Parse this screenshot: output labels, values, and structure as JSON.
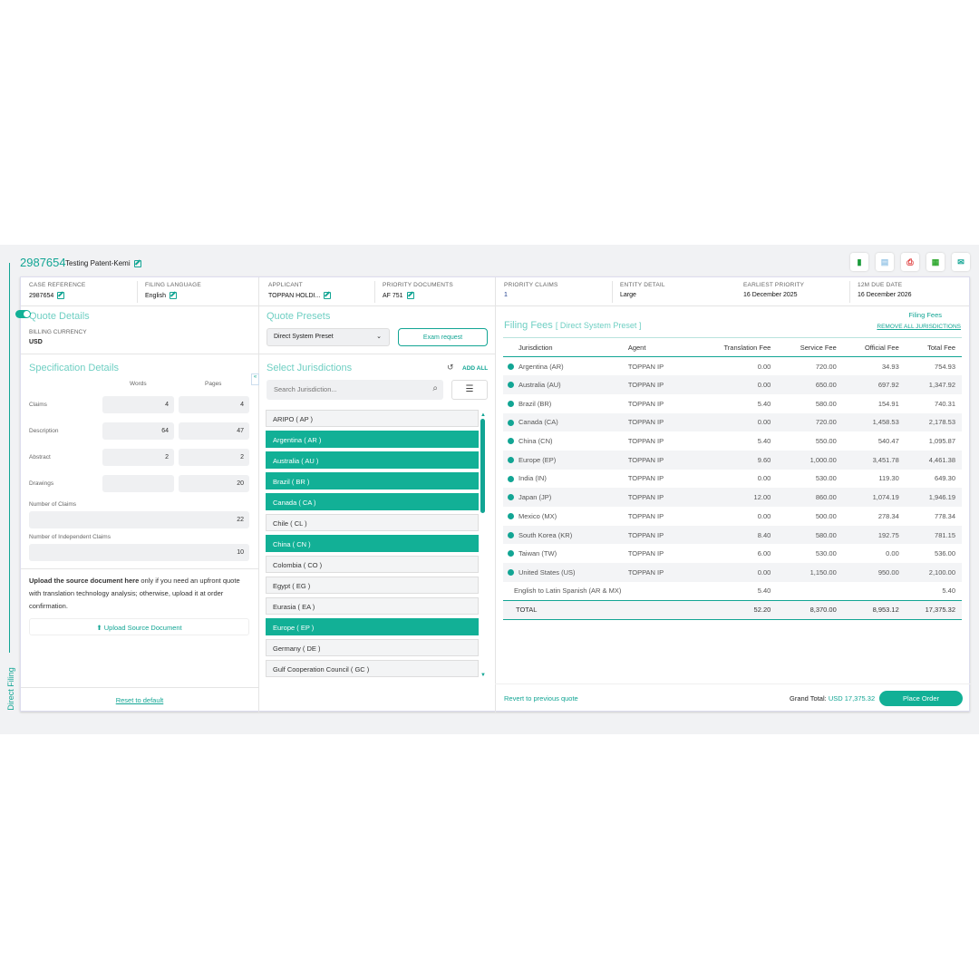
{
  "header": {
    "case_number": "2987654",
    "case_name": "Testing Patent-Kemi"
  },
  "side_tab": "Direct Filing",
  "export_icons": [
    "docx-icon",
    "doc-icon",
    "pdf-icon",
    "excel-icon",
    "email-icon"
  ],
  "info": [
    {
      "label": "CASE REFERENCE",
      "value": "2987654",
      "editable": true
    },
    {
      "label": "FILING LANGUAGE",
      "value": "English",
      "editable": true
    },
    {
      "label": "APPLICANT",
      "value": "TOPPAN HOLDI...",
      "editable": true
    },
    {
      "label": "PRIORITY DOCUMENTS",
      "value": "AF 751",
      "editable": true
    },
    {
      "label": "PRIORITY CLAIMS",
      "value": "1"
    },
    {
      "label": "ENTITY DETAIL",
      "value": "Large"
    },
    {
      "label": "EARLIEST PRIORITY",
      "value": "16 December 2025"
    },
    {
      "label": "12M DUE DATE",
      "value": "16 December 2026"
    }
  ],
  "quote": {
    "title": "Quote Details",
    "currency_label": "BILLING CURRENCY",
    "currency": "USD"
  },
  "spec": {
    "title": "Specification Details",
    "col_words": "Words",
    "col_pages": "Pages",
    "rows": [
      {
        "label": "Claims",
        "words": "4",
        "pages": "4"
      },
      {
        "label": "Description",
        "words": "64",
        "pages": "47"
      },
      {
        "label": "Abstract",
        "words": "2",
        "pages": "2"
      },
      {
        "label": "Drawings",
        "words": "",
        "pages": "20"
      }
    ],
    "num_claims_label": "Number of Claims",
    "num_claims": "22",
    "num_indep_label": "Number of Independent Claims",
    "num_indep": "10"
  },
  "upload": {
    "bold": "Upload the source document here",
    "text": " only if you need an upfront quote with translation technology analysis; otherwise, upload it at order confirmation.",
    "button": "Upload Source Document"
  },
  "reset": "Reset to default",
  "presets": {
    "title": "Quote Presets",
    "selected": "Direct System Preset",
    "exam": "Exam request"
  },
  "jurisdictions": {
    "title": "Select Jurisdictions",
    "add_all": "ADD ALL",
    "placeholder": "Search Jurisdiction...",
    "items": [
      {
        "name": "ARIPO ( AP )",
        "selected": false
      },
      {
        "name": "Argentina ( AR )",
        "selected": true
      },
      {
        "name": "Australia ( AU )",
        "selected": true
      },
      {
        "name": "Brazil ( BR )",
        "selected": true
      },
      {
        "name": "Canada ( CA )",
        "selected": true
      },
      {
        "name": "Chile ( CL )",
        "selected": false
      },
      {
        "name": "China ( CN )",
        "selected": true
      },
      {
        "name": "Colombia ( CO )",
        "selected": false
      },
      {
        "name": "Egypt ( EG )",
        "selected": false
      },
      {
        "name": "Eurasia ( EA )",
        "selected": false
      },
      {
        "name": "Europe ( EP )",
        "selected": true
      },
      {
        "name": "Germany ( DE )",
        "selected": false
      },
      {
        "name": "Gulf Cooperation Council ( GC )",
        "selected": false
      }
    ]
  },
  "fees": {
    "title": "Filing Fees",
    "preset": "[ Direct System Preset ]",
    "toggle_label": "Filing Fees",
    "toggle_on": true,
    "remove_all": "REMOVE ALL JURISDICTIONS",
    "columns": [
      "Jurisdiction",
      "Agent",
      "Translation Fee",
      "Service Fee",
      "Official Fee",
      "Total Fee"
    ],
    "rows": [
      [
        "Argentina (AR)",
        "TOPPAN IP",
        "0.00",
        "720.00",
        "34.93",
        "754.93"
      ],
      [
        "Australia (AU)",
        "TOPPAN IP",
        "0.00",
        "650.00",
        "697.92",
        "1,347.92"
      ],
      [
        "Brazil (BR)",
        "TOPPAN IP",
        "5.40",
        "580.00",
        "154.91",
        "740.31"
      ],
      [
        "Canada (CA)",
        "TOPPAN IP",
        "0.00",
        "720.00",
        "1,458.53",
        "2,178.53"
      ],
      [
        "China (CN)",
        "TOPPAN IP",
        "5.40",
        "550.00",
        "540.47",
        "1,095.87"
      ],
      [
        "Europe (EP)",
        "TOPPAN IP",
        "9.60",
        "1,000.00",
        "3,451.78",
        "4,461.38"
      ],
      [
        "India (IN)",
        "TOPPAN IP",
        "0.00",
        "530.00",
        "119.30",
        "649.30"
      ],
      [
        "Japan (JP)",
        "TOPPAN IP",
        "12.00",
        "860.00",
        "1,074.19",
        "1,946.19"
      ],
      [
        "Mexico (MX)",
        "TOPPAN IP",
        "0.00",
        "500.00",
        "278.34",
        "778.34"
      ],
      [
        "South Korea (KR)",
        "TOPPAN IP",
        "8.40",
        "580.00",
        "192.75",
        "781.15"
      ],
      [
        "Taiwan (TW)",
        "TOPPAN IP",
        "6.00",
        "530.00",
        "0.00",
        "536.00"
      ],
      [
        "United States (US)",
        "TOPPAN IP",
        "0.00",
        "1,150.00",
        "950.00",
        "2,100.00"
      ]
    ],
    "extra": {
      "label": "English to Latin Spanish (AR & MX)",
      "translation": "5.40",
      "total": "5.40"
    },
    "total": {
      "label": "TOTAL",
      "translation": "52.20",
      "service": "8,370.00",
      "official": "8,953.12",
      "total": "17,375.32"
    }
  },
  "footer": {
    "revert": "Revert to previous quote",
    "grand_label": "Grand Total:",
    "grand_value": "USD 17,375.32",
    "place_order": "Place Order"
  },
  "colors": {
    "accent": "#12a594",
    "selected": "#12b096"
  }
}
